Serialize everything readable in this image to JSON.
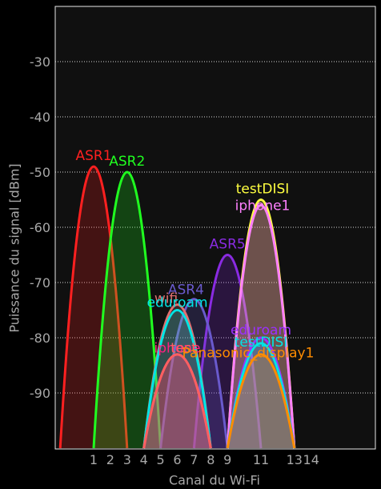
{
  "chart_data": {
    "type": "area",
    "xlabel": "Canal du Wi-Fi",
    "ylabel": "Puissance du signal [dBm]",
    "x_ticks": [
      1,
      2,
      3,
      4,
      5,
      6,
      7,
      8,
      9,
      11,
      13,
      14
    ],
    "y_ticks": [
      -30,
      -40,
      -50,
      -60,
      -70,
      -80,
      -90
    ],
    "xlim": [
      -1,
      15.5
    ],
    "ylim": [
      -100,
      -20
    ],
    "grid": "horizontal-dotted",
    "series": [
      {
        "name": "ASR1",
        "channel": 1,
        "signal_dbm": -49,
        "color": "#ff2020"
      },
      {
        "name": "ASR2",
        "channel": 3,
        "signal_dbm": -50,
        "color": "#20ff20"
      },
      {
        "name": "ASR5",
        "channel": 9,
        "signal_dbm": -65,
        "color": "#8a2be2"
      },
      {
        "name": "ASR4",
        "channel": 7,
        "signal_dbm": -73,
        "color": "#6a5acd"
      },
      {
        "name": "wifi",
        "channel": 6,
        "signal_dbm": -74,
        "color": "#e07070"
      },
      {
        "name": "eduroam",
        "channel": 6,
        "signal_dbm": -75,
        "color": "#00e5e5"
      },
      {
        "name": "iphone",
        "channel": 6,
        "signal_dbm": -83,
        "color": "#ff2080"
      },
      {
        "name": "test",
        "channel": 6,
        "signal_dbm": -83,
        "color": "#ff6060"
      },
      {
        "name": "testDISI",
        "channel": 11,
        "signal_dbm": -55,
        "color": "#ffff40"
      },
      {
        "name": "iphone1",
        "channel": 11,
        "signal_dbm": -56,
        "color": "#ff80ff"
      },
      {
        "name": "eduroam",
        "channel": 11,
        "signal_dbm": -80,
        "color": "#9b30ff"
      },
      {
        "name": "testDISI",
        "channel": 11,
        "signal_dbm": -81,
        "color": "#00e5e5"
      },
      {
        "name": "Panasonic_display1",
        "channel": 11,
        "signal_dbm": -83,
        "color": "#ff8c00"
      }
    ]
  }
}
